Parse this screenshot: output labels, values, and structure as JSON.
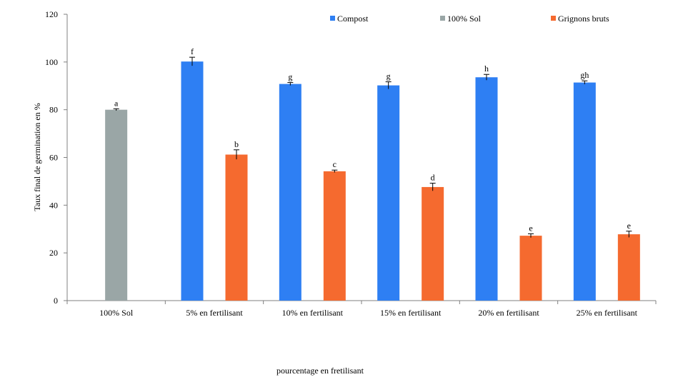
{
  "chart_data": {
    "type": "bar",
    "xlabel": "pourcentage en fretilisant",
    "ylabel": "Taux final de germination en %",
    "ylim": [
      0,
      120
    ],
    "yticks": [
      0,
      20,
      40,
      60,
      80,
      100,
      120
    ],
    "grid": false,
    "legend_position": "top-right",
    "categories": [
      "100% Sol",
      "5% en fertilisant",
      "10% en fertilisant",
      "15% en fertilisant",
      "20% en fertilisant",
      "25% en fertilisant"
    ],
    "series": [
      {
        "name": "Compost",
        "color": "#2e7ff3",
        "values": [
          null,
          100.2,
          90.8,
          90.2,
          93.6,
          91.4
        ],
        "errors": [
          null,
          1.8,
          0.6,
          1.5,
          1.2,
          0.7
        ],
        "labels": [
          null,
          "f",
          "g",
          "g",
          "h",
          "gh"
        ]
      },
      {
        "name": "100% Sol",
        "color": "#9aa6a6",
        "values": [
          80.0,
          null,
          null,
          null,
          null,
          null
        ],
        "errors": [
          0.4,
          null,
          null,
          null,
          null,
          null
        ],
        "labels": [
          "a",
          null,
          null,
          null,
          null,
          null
        ]
      },
      {
        "name": "Grignons bruts",
        "color": "#f56a2f",
        "values": [
          null,
          61.2,
          54.2,
          47.6,
          27.2,
          27.8
        ],
        "errors": [
          null,
          2.0,
          0.5,
          1.6,
          0.8,
          1.3
        ],
        "labels": [
          null,
          "b",
          "c",
          "d",
          "e",
          "e"
        ]
      }
    ]
  }
}
